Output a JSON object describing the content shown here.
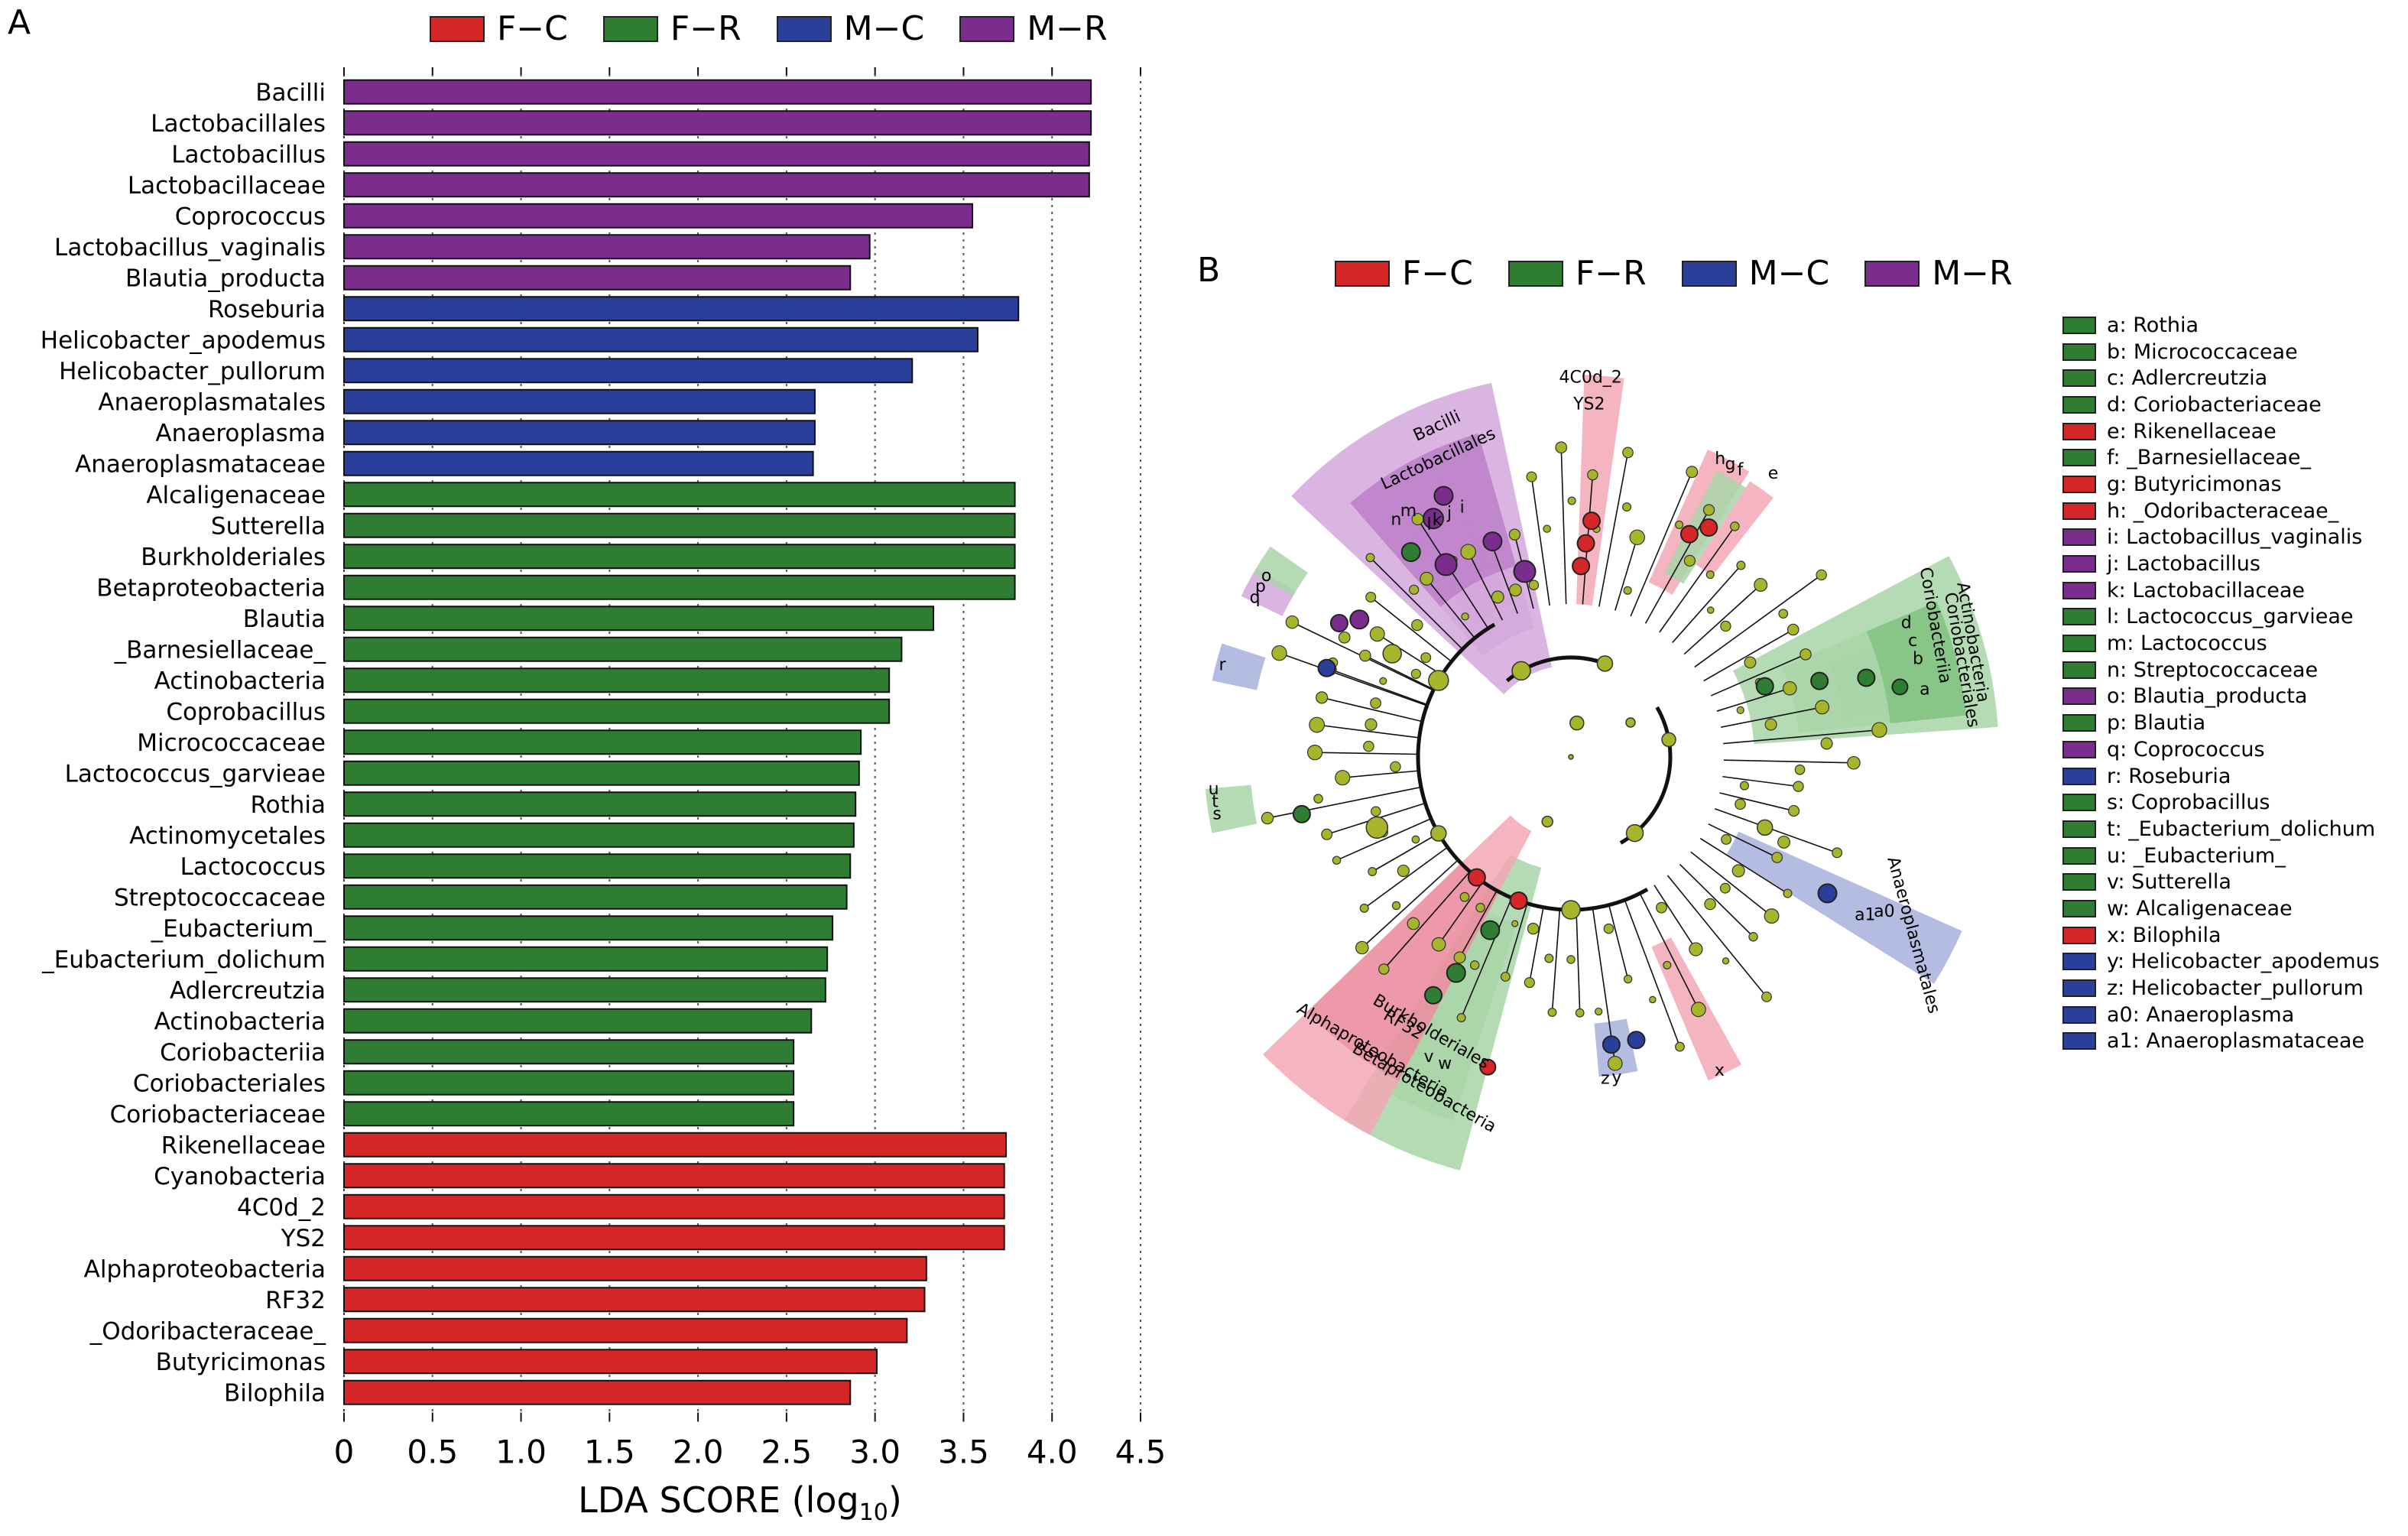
{
  "panels": {
    "a_letter": "A",
    "b_letter": "B"
  },
  "groups": [
    {
      "name": "F−C",
      "color": "#d62728"
    },
    {
      "name": "F−R",
      "color": "#2e7d32"
    },
    {
      "name": "M−C",
      "color": "#2a3f9a"
    },
    {
      "name": "M−R",
      "color": "#7b2d8e"
    }
  ],
  "chart_data": [
    {
      "type": "bar",
      "orientation": "horizontal",
      "xlabel_main": "LDA SCORE (log",
      "xlabel_sub": "10",
      "xlabel_end": ")",
      "xlim": [
        0,
        4.5
      ],
      "xticks": [
        "0",
        "0.5",
        "1.0",
        "1.5",
        "2.0",
        "2.5",
        "3.0",
        "3.5",
        "4.0",
        "4.5"
      ],
      "xtick_values": [
        0,
        0.5,
        1.0,
        1.5,
        2.0,
        2.5,
        3.0,
        3.5,
        4.0,
        4.5
      ],
      "grid": "vertical dotted",
      "legend_placement": "top",
      "bars": [
        {
          "label": "Bacilli",
          "value": 4.22,
          "group": "M−R"
        },
        {
          "label": "Lactobacillales",
          "value": 4.22,
          "group": "M−R"
        },
        {
          "label": "Lactobacillus",
          "value": 4.21,
          "group": "M−R"
        },
        {
          "label": "Lactobacillaceae",
          "value": 4.21,
          "group": "M−R"
        },
        {
          "label": "Coprococcus",
          "value": 3.55,
          "group": "M−R"
        },
        {
          "label": "Lactobacillus_vaginalis",
          "value": 2.97,
          "group": "M−R"
        },
        {
          "label": "Blautia_producta",
          "value": 2.86,
          "group": "M−R"
        },
        {
          "label": "Roseburia",
          "value": 3.81,
          "group": "M−C"
        },
        {
          "label": "Helicobacter_apodemus",
          "value": 3.58,
          "group": "M−C"
        },
        {
          "label": "Helicobacter_pullorum",
          "value": 3.21,
          "group": "M−C"
        },
        {
          "label": "Anaeroplasmatales",
          "value": 2.66,
          "group": "M−C"
        },
        {
          "label": "Anaeroplasma",
          "value": 2.66,
          "group": "M−C"
        },
        {
          "label": "Anaeroplasmataceae",
          "value": 2.65,
          "group": "M−C"
        },
        {
          "label": "Alcaligenaceae",
          "value": 3.79,
          "group": "F−R"
        },
        {
          "label": "Sutterella",
          "value": 3.79,
          "group": "F−R"
        },
        {
          "label": "Burkholderiales",
          "value": 3.79,
          "group": "F−R"
        },
        {
          "label": "Betaproteobacteria",
          "value": 3.79,
          "group": "F−R"
        },
        {
          "label": "Blautia",
          "value": 3.33,
          "group": "F−R"
        },
        {
          "label": "_Barnesiellaceae_",
          "value": 3.15,
          "group": "F−R"
        },
        {
          "label": "Actinobacteria",
          "value": 3.08,
          "group": "F−R"
        },
        {
          "label": "Coprobacillus",
          "value": 3.08,
          "group": "F−R"
        },
        {
          "label": "Micrococcaceae",
          "value": 2.92,
          "group": "F−R"
        },
        {
          "label": "Lactococcus_garvieae",
          "value": 2.91,
          "group": "F−R"
        },
        {
          "label": "Rothia",
          "value": 2.89,
          "group": "F−R"
        },
        {
          "label": "Actinomycetales",
          "value": 2.88,
          "group": "F−R"
        },
        {
          "label": "Lactococcus",
          "value": 2.86,
          "group": "F−R"
        },
        {
          "label": "Streptococcaceae",
          "value": 2.84,
          "group": "F−R"
        },
        {
          "label": "_Eubacterium_",
          "value": 2.76,
          "group": "F−R"
        },
        {
          "label": "_Eubacterium_dolichum",
          "value": 2.73,
          "group": "F−R"
        },
        {
          "label": "Adlercreutzia",
          "value": 2.72,
          "group": "F−R"
        },
        {
          "label": "Actinobacteria",
          "value": 2.64,
          "group": "F−R"
        },
        {
          "label": "Coriobacteriia",
          "value": 2.54,
          "group": "F−R"
        },
        {
          "label": "Coriobacteriales",
          "value": 2.54,
          "group": "F−R"
        },
        {
          "label": "Coriobacteriaceae",
          "value": 2.54,
          "group": "F−R"
        },
        {
          "label": "Rikenellaceae",
          "value": 3.74,
          "group": "F−C"
        },
        {
          "label": "Cyanobacteria",
          "value": 3.73,
          "group": "F−C"
        },
        {
          "label": "4C0d_2",
          "value": 3.73,
          "group": "F−C"
        },
        {
          "label": "YS2",
          "value": 3.73,
          "group": "F−C"
        },
        {
          "label": "Alphaproteobacteria",
          "value": 3.29,
          "group": "F−C"
        },
        {
          "label": "RF32",
          "value": 3.28,
          "group": "F−C"
        },
        {
          "label": "_Odoribacteraceae_",
          "value": 3.18,
          "group": "F−C"
        },
        {
          "label": "Butyricimonas",
          "value": 3.01,
          "group": "F−C"
        },
        {
          "label": "Bilophila",
          "value": 2.86,
          "group": "F−C"
        }
      ]
    },
    {
      "type": "cladogram",
      "legend_placement": "top",
      "clade_labels": [
        {
          "text": "Bacilli",
          "group": "M−R"
        },
        {
          "text": "Lactobacillales",
          "group": "M−R"
        },
        {
          "text": "4C0d_2",
          "group": "F−C"
        },
        {
          "text": "YS2",
          "group": "F−C"
        },
        {
          "text": "Coriobacteriia",
          "group": "F−R"
        },
        {
          "text": "Coriobacteriales",
          "group": "F−R"
        },
        {
          "text": "Actinobacteria",
          "group": "F−R"
        },
        {
          "text": "Anaeroplasmatales",
          "group": "M−C"
        },
        {
          "text": "RF32",
          "group": "F−C"
        },
        {
          "text": "Alphaproteobacteria",
          "group": "F−C"
        },
        {
          "text": "Burkholderiales",
          "group": "F−R"
        },
        {
          "text": "Betaproteobacteria",
          "group": "F−R"
        }
      ],
      "letter_labels": [
        "a",
        "b",
        "c",
        "d",
        "e",
        "f",
        "g",
        "h",
        "i",
        "j",
        "k",
        "l",
        "m",
        "n",
        "o",
        "p",
        "q",
        "r",
        "s",
        "t",
        "u",
        "v",
        "w",
        "x",
        "y",
        "z",
        "a0",
        "a1"
      ],
      "legend": [
        {
          "key": "a: Rothia",
          "group": "F−R"
        },
        {
          "key": "b: Micrococcaceae",
          "group": "F−R"
        },
        {
          "key": "c: Adlercreutzia",
          "group": "F−R"
        },
        {
          "key": "d: Coriobacteriaceae",
          "group": "F−R"
        },
        {
          "key": "e: Rikenellaceae",
          "group": "F−C"
        },
        {
          "key": "f: _Barnesiellaceae_",
          "group": "F−R"
        },
        {
          "key": "g: Butyricimonas",
          "group": "F−C"
        },
        {
          "key": "h: _Odoribacteraceae_",
          "group": "F−C"
        },
        {
          "key": "i: Lactobacillus_vaginalis",
          "group": "M−R"
        },
        {
          "key": "j: Lactobacillus",
          "group": "M−R"
        },
        {
          "key": "k: Lactobacillaceae",
          "group": "M−R"
        },
        {
          "key": "l: Lactococcus_garvieae",
          "group": "F−R"
        },
        {
          "key": "m: Lactococcus",
          "group": "F−R"
        },
        {
          "key": "n: Streptococcaceae",
          "group": "F−R"
        },
        {
          "key": "o: Blautia_producta",
          "group": "M−R"
        },
        {
          "key": "p: Blautia",
          "group": "F−R"
        },
        {
          "key": "q: Coprococcus",
          "group": "M−R"
        },
        {
          "key": "r: Roseburia",
          "group": "M−C"
        },
        {
          "key": "s: Coprobacillus",
          "group": "F−R"
        },
        {
          "key": "t: _Eubacterium_dolichum",
          "group": "F−R"
        },
        {
          "key": "u: _Eubacterium_",
          "group": "F−R"
        },
        {
          "key": "v: Sutterella",
          "group": "F−R"
        },
        {
          "key": "w: Alcaligenaceae",
          "group": "F−R"
        },
        {
          "key": "x: Bilophila",
          "group": "F−C"
        },
        {
          "key": "y: Helicobacter_apodemus",
          "group": "M−C"
        },
        {
          "key": "z: Helicobacter_pullorum",
          "group": "M−C"
        },
        {
          "key": "a0: Anaeroplasma",
          "group": "M−C"
        },
        {
          "key": "a1: Anaeroplasmataceae",
          "group": "M−C"
        }
      ]
    }
  ]
}
